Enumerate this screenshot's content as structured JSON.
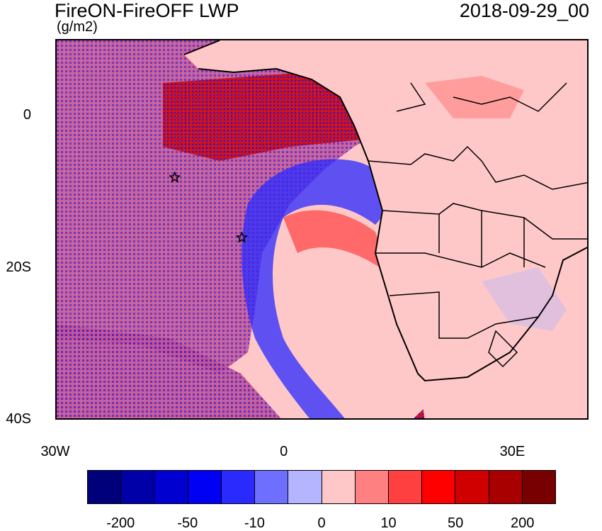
{
  "title": "FireON-FireOFF LWP",
  "units": "(g/m2)",
  "datetime": "2018-09-29_00",
  "axes": {
    "x_ticks": [
      {
        "label": "30W",
        "lon": -30
      },
      {
        "label": "0",
        "lon": 0
      },
      {
        "label": "30E",
        "lon": 30
      }
    ],
    "y_ticks": [
      {
        "label": "0",
        "lat": 0
      },
      {
        "label": "20S",
        "lat": -20
      },
      {
        "label": "40S",
        "lat": -40
      }
    ],
    "lon_range": [
      -30,
      40
    ],
    "lat_range": [
      -40,
      10
    ]
  },
  "colorbar": {
    "colors": [
      "#00007a",
      "#0000a8",
      "#0000d0",
      "#0000f5",
      "#2a2aff",
      "#6e6eff",
      "#b4b4ff",
      "#ffc8c8",
      "#ff8080",
      "#ff4040",
      "#ff0000",
      "#d00000",
      "#a80000",
      "#780000"
    ],
    "labels": [
      "-200",
      "-50",
      "-10",
      "0",
      "10",
      "50",
      "200"
    ]
  },
  "markers": [
    {
      "name": "star-marker-1",
      "lon": -14.5,
      "lat": -8.0
    },
    {
      "name": "star-marker-2",
      "lon": -5.7,
      "lat": -15.9
    }
  ]
}
